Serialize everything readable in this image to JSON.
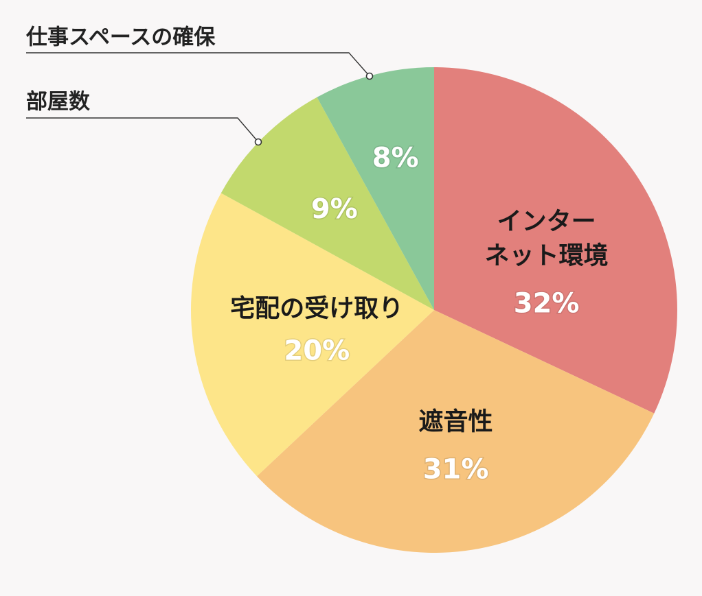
{
  "chart_data": {
    "type": "pie",
    "start": "top",
    "direction": "clockwise",
    "slices": [
      {
        "label_lines": [
          "インター",
          "ネット環境"
        ],
        "value": 32,
        "display": "32%",
        "color": "#e2807c",
        "label_style": "inside"
      },
      {
        "label_lines": [
          "遮音性"
        ],
        "value": 31,
        "display": "31%",
        "color": "#f7c47e",
        "label_style": "inside"
      },
      {
        "label_lines": [
          "宅配の受け取り"
        ],
        "value": 20,
        "display": "20%",
        "color": "#fde589",
        "label_style": "inside"
      },
      {
        "label_lines": [
          "部屋数"
        ],
        "value": 9,
        "display": "9%",
        "color": "#c2d96d",
        "label_style": "callout"
      },
      {
        "label_lines": [
          "仕事スペースの確保"
        ],
        "value": 8,
        "display": "8%",
        "color": "#8ac899",
        "label_style": "callout"
      }
    ]
  }
}
